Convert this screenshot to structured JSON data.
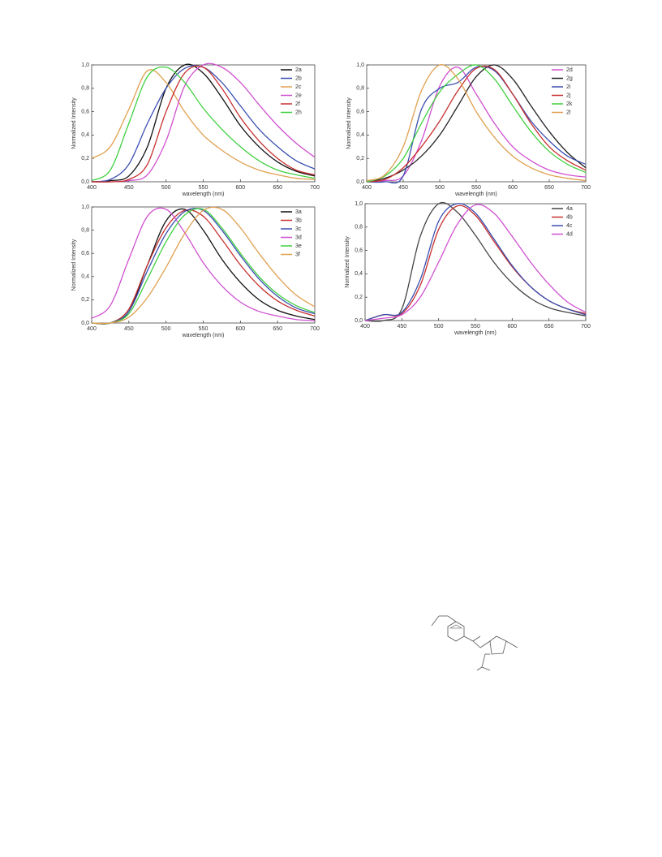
{
  "chart_data": [
    {
      "type": "line",
      "x_label": "wavelength (nm)",
      "y_label": "Normalized Intensity",
      "x": [
        400,
        425,
        450,
        475,
        500,
        525,
        550,
        575,
        600,
        625,
        650,
        675,
        700
      ],
      "xlim": [
        400,
        700
      ],
      "ylim": [
        0,
        1
      ],
      "xticks": [
        400,
        450,
        500,
        550,
        600,
        650,
        700
      ],
      "yticks": [
        {
          "value": 0,
          "label": "0,0"
        },
        {
          "value": 0.2,
          "label": "0,2"
        },
        {
          "value": 0.4,
          "label": "0,4"
        },
        {
          "value": 0.6,
          "label": "0,6"
        },
        {
          "value": 0.8,
          "label": "0,8"
        },
        {
          "value": 1,
          "label": "1,0"
        }
      ],
      "series": [
        {
          "name": "2a",
          "color": "#111111",
          "values": [
            0,
            0.01,
            0.05,
            0.3,
            0.8,
            1.0,
            0.93,
            0.72,
            0.48,
            0.3,
            0.17,
            0.09,
            0.05
          ]
        },
        {
          "name": "2b",
          "color": "#3a4fb0",
          "values": [
            0,
            0.02,
            0.15,
            0.5,
            0.8,
            0.97,
            0.98,
            0.85,
            0.65,
            0.45,
            0.3,
            0.18,
            0.11
          ]
        },
        {
          "name": "2c",
          "color": "#e0a050",
          "values": [
            0.2,
            0.3,
            0.62,
            0.95,
            0.85,
            0.6,
            0.4,
            0.27,
            0.17,
            0.1,
            0.06,
            0.03,
            0.02
          ]
        },
        {
          "name": "2e",
          "color": "#d050d0",
          "values": [
            0,
            0,
            0.01,
            0.06,
            0.35,
            0.82,
            1.0,
            0.98,
            0.85,
            0.66,
            0.48,
            0.33,
            0.21
          ]
        },
        {
          "name": "2f",
          "color": "#c83030",
          "values": [
            0,
            0,
            0.02,
            0.15,
            0.6,
            0.93,
            0.98,
            0.8,
            0.55,
            0.35,
            0.2,
            0.1,
            0.06
          ]
        },
        {
          "name": "2h",
          "color": "#40d040",
          "values": [
            0.01,
            0.1,
            0.5,
            0.9,
            0.98,
            0.85,
            0.63,
            0.45,
            0.3,
            0.18,
            0.1,
            0.06,
            0.03
          ]
        }
      ]
    },
    {
      "type": "line",
      "x_label": "wavelength (nm)",
      "y_label": "Normalized Intensity",
      "x": [
        400,
        425,
        450,
        475,
        500,
        525,
        550,
        575,
        600,
        625,
        650,
        675,
        700
      ],
      "xlim": [
        400,
        700
      ],
      "ylim": [
        0,
        1
      ],
      "xticks": [
        400,
        450,
        500,
        550,
        600,
        650,
        700
      ],
      "yticks": [
        {
          "value": 0,
          "label": "0,0"
        },
        {
          "value": 0.2,
          "label": "0,2"
        },
        {
          "value": 0.4,
          "label": "0,4"
        },
        {
          "value": 0.6,
          "label": "0,6"
        },
        {
          "value": 0.8,
          "label": "0,8"
        },
        {
          "value": 1,
          "label": "1,0"
        }
      ],
      "series": [
        {
          "name": "2d",
          "color": "#d050d0",
          "values": [
            0,
            0.01,
            0.05,
            0.35,
            0.82,
            0.98,
            0.75,
            0.5,
            0.3,
            0.18,
            0.1,
            0.06,
            0.04
          ]
        },
        {
          "name": "2g",
          "color": "#222222",
          "values": [
            0,
            0.03,
            0.1,
            0.22,
            0.4,
            0.65,
            0.9,
            1.0,
            0.88,
            0.65,
            0.43,
            0.25,
            0.12
          ]
        },
        {
          "name": "2i",
          "color": "#3a4fb0",
          "values": [
            0,
            0,
            0.05,
            0.62,
            0.8,
            0.85,
            0.98,
            0.95,
            0.75,
            0.52,
            0.35,
            0.22,
            0.15
          ]
        },
        {
          "name": "2j",
          "color": "#c83030",
          "values": [
            0,
            0.02,
            0.12,
            0.3,
            0.52,
            0.78,
            0.97,
            0.96,
            0.75,
            0.5,
            0.3,
            0.18,
            0.1
          ]
        },
        {
          "name": "2k",
          "color": "#40d040",
          "values": [
            0,
            0.05,
            0.2,
            0.5,
            0.77,
            0.92,
            1.0,
            0.88,
            0.65,
            0.43,
            0.26,
            0.15,
            0.08
          ]
        },
        {
          "name": "2l",
          "color": "#e0a050",
          "values": [
            0.01,
            0.06,
            0.3,
            0.78,
            1.0,
            0.88,
            0.6,
            0.38,
            0.22,
            0.12,
            0.06,
            0.03,
            0.01
          ]
        }
      ]
    },
    {
      "type": "line",
      "x_label": "wavelength (nm)",
      "y_label": "Normalized Intensity",
      "x": [
        400,
        425,
        450,
        475,
        500,
        525,
        550,
        575,
        600,
        625,
        650,
        675,
        700
      ],
      "xlim": [
        400,
        700
      ],
      "ylim": [
        0,
        1
      ],
      "xticks": [
        400,
        450,
        500,
        550,
        600,
        650,
        700
      ],
      "yticks": [
        {
          "value": 0,
          "label": "0,0"
        },
        {
          "value": 0.2,
          "label": "0,2"
        },
        {
          "value": 0.4,
          "label": "0,4"
        },
        {
          "value": 0.6,
          "label": "0,6"
        },
        {
          "value": 0.8,
          "label": "0,8"
        },
        {
          "value": 1,
          "label": "1,0"
        }
      ],
      "series": [
        {
          "name": "3a",
          "color": "#111111",
          "values": [
            0,
            0,
            0.1,
            0.5,
            0.88,
            0.98,
            0.8,
            0.55,
            0.35,
            0.2,
            0.11,
            0.06,
            0.03
          ]
        },
        {
          "name": "3b",
          "color": "#c83030",
          "values": [
            0,
            0,
            0.12,
            0.5,
            0.82,
            0.97,
            0.92,
            0.72,
            0.5,
            0.32,
            0.19,
            0.11,
            0.06
          ]
        },
        {
          "name": "3c",
          "color": "#3a4fb0",
          "values": [
            0,
            0,
            0.1,
            0.45,
            0.77,
            0.96,
            0.97,
            0.8,
            0.58,
            0.38,
            0.23,
            0.13,
            0.08
          ]
        },
        {
          "name": "3d",
          "color": "#d050d0",
          "values": [
            0.04,
            0.15,
            0.55,
            0.92,
            0.98,
            0.78,
            0.52,
            0.32,
            0.18,
            0.1,
            0.06,
            0.03,
            0.02
          ]
        },
        {
          "name": "3e",
          "color": "#40d040",
          "values": [
            0,
            0,
            0.08,
            0.38,
            0.7,
            0.93,
            0.98,
            0.82,
            0.6,
            0.4,
            0.25,
            0.15,
            0.09
          ]
        },
        {
          "name": "3f",
          "color": "#e0a050",
          "values": [
            0,
            0,
            0.05,
            0.22,
            0.48,
            0.77,
            0.97,
            0.98,
            0.82,
            0.6,
            0.4,
            0.24,
            0.14
          ]
        }
      ]
    },
    {
      "type": "line",
      "x_label": "wavelength (nm)",
      "y_label": "Normalized Intensity",
      "x": [
        400,
        425,
        450,
        475,
        500,
        525,
        550,
        575,
        600,
        625,
        650,
        675,
        700
      ],
      "xlim": [
        400,
        700
      ],
      "ylim": [
        0,
        1
      ],
      "xticks": [
        400,
        450,
        500,
        550,
        600,
        650,
        700
      ],
      "yticks": [
        {
          "value": 0,
          "label": "0,0"
        },
        {
          "value": 0.2,
          "label": "0,2"
        },
        {
          "value": 0.4,
          "label": "0,4"
        },
        {
          "value": 0.6,
          "label": "0,6"
        },
        {
          "value": 0.8,
          "label": "0,8"
        },
        {
          "value": 1,
          "label": "1,0"
        }
      ],
      "series": [
        {
          "name": "4a",
          "color": "#444444",
          "values": [
            0,
            0,
            0.1,
            0.72,
            1.0,
            0.93,
            0.73,
            0.5,
            0.32,
            0.19,
            0.11,
            0.07,
            0.04
          ]
        },
        {
          "name": "4b",
          "color": "#c83030",
          "values": [
            0,
            0.05,
            0.06,
            0.3,
            0.78,
            0.98,
            0.9,
            0.68,
            0.46,
            0.29,
            0.17,
            0.1,
            0.06
          ]
        },
        {
          "name": "4c",
          "color": "#3a4fb0",
          "values": [
            0,
            0.05,
            0.07,
            0.35,
            0.85,
            1.0,
            0.92,
            0.7,
            0.47,
            0.29,
            0.17,
            0.1,
            0.05
          ]
        },
        {
          "name": "4d",
          "color": "#d050d0",
          "values": [
            0,
            0.02,
            0.05,
            0.2,
            0.5,
            0.82,
            0.99,
            0.92,
            0.72,
            0.5,
            0.31,
            0.16,
            0.07
          ]
        }
      ]
    }
  ]
}
